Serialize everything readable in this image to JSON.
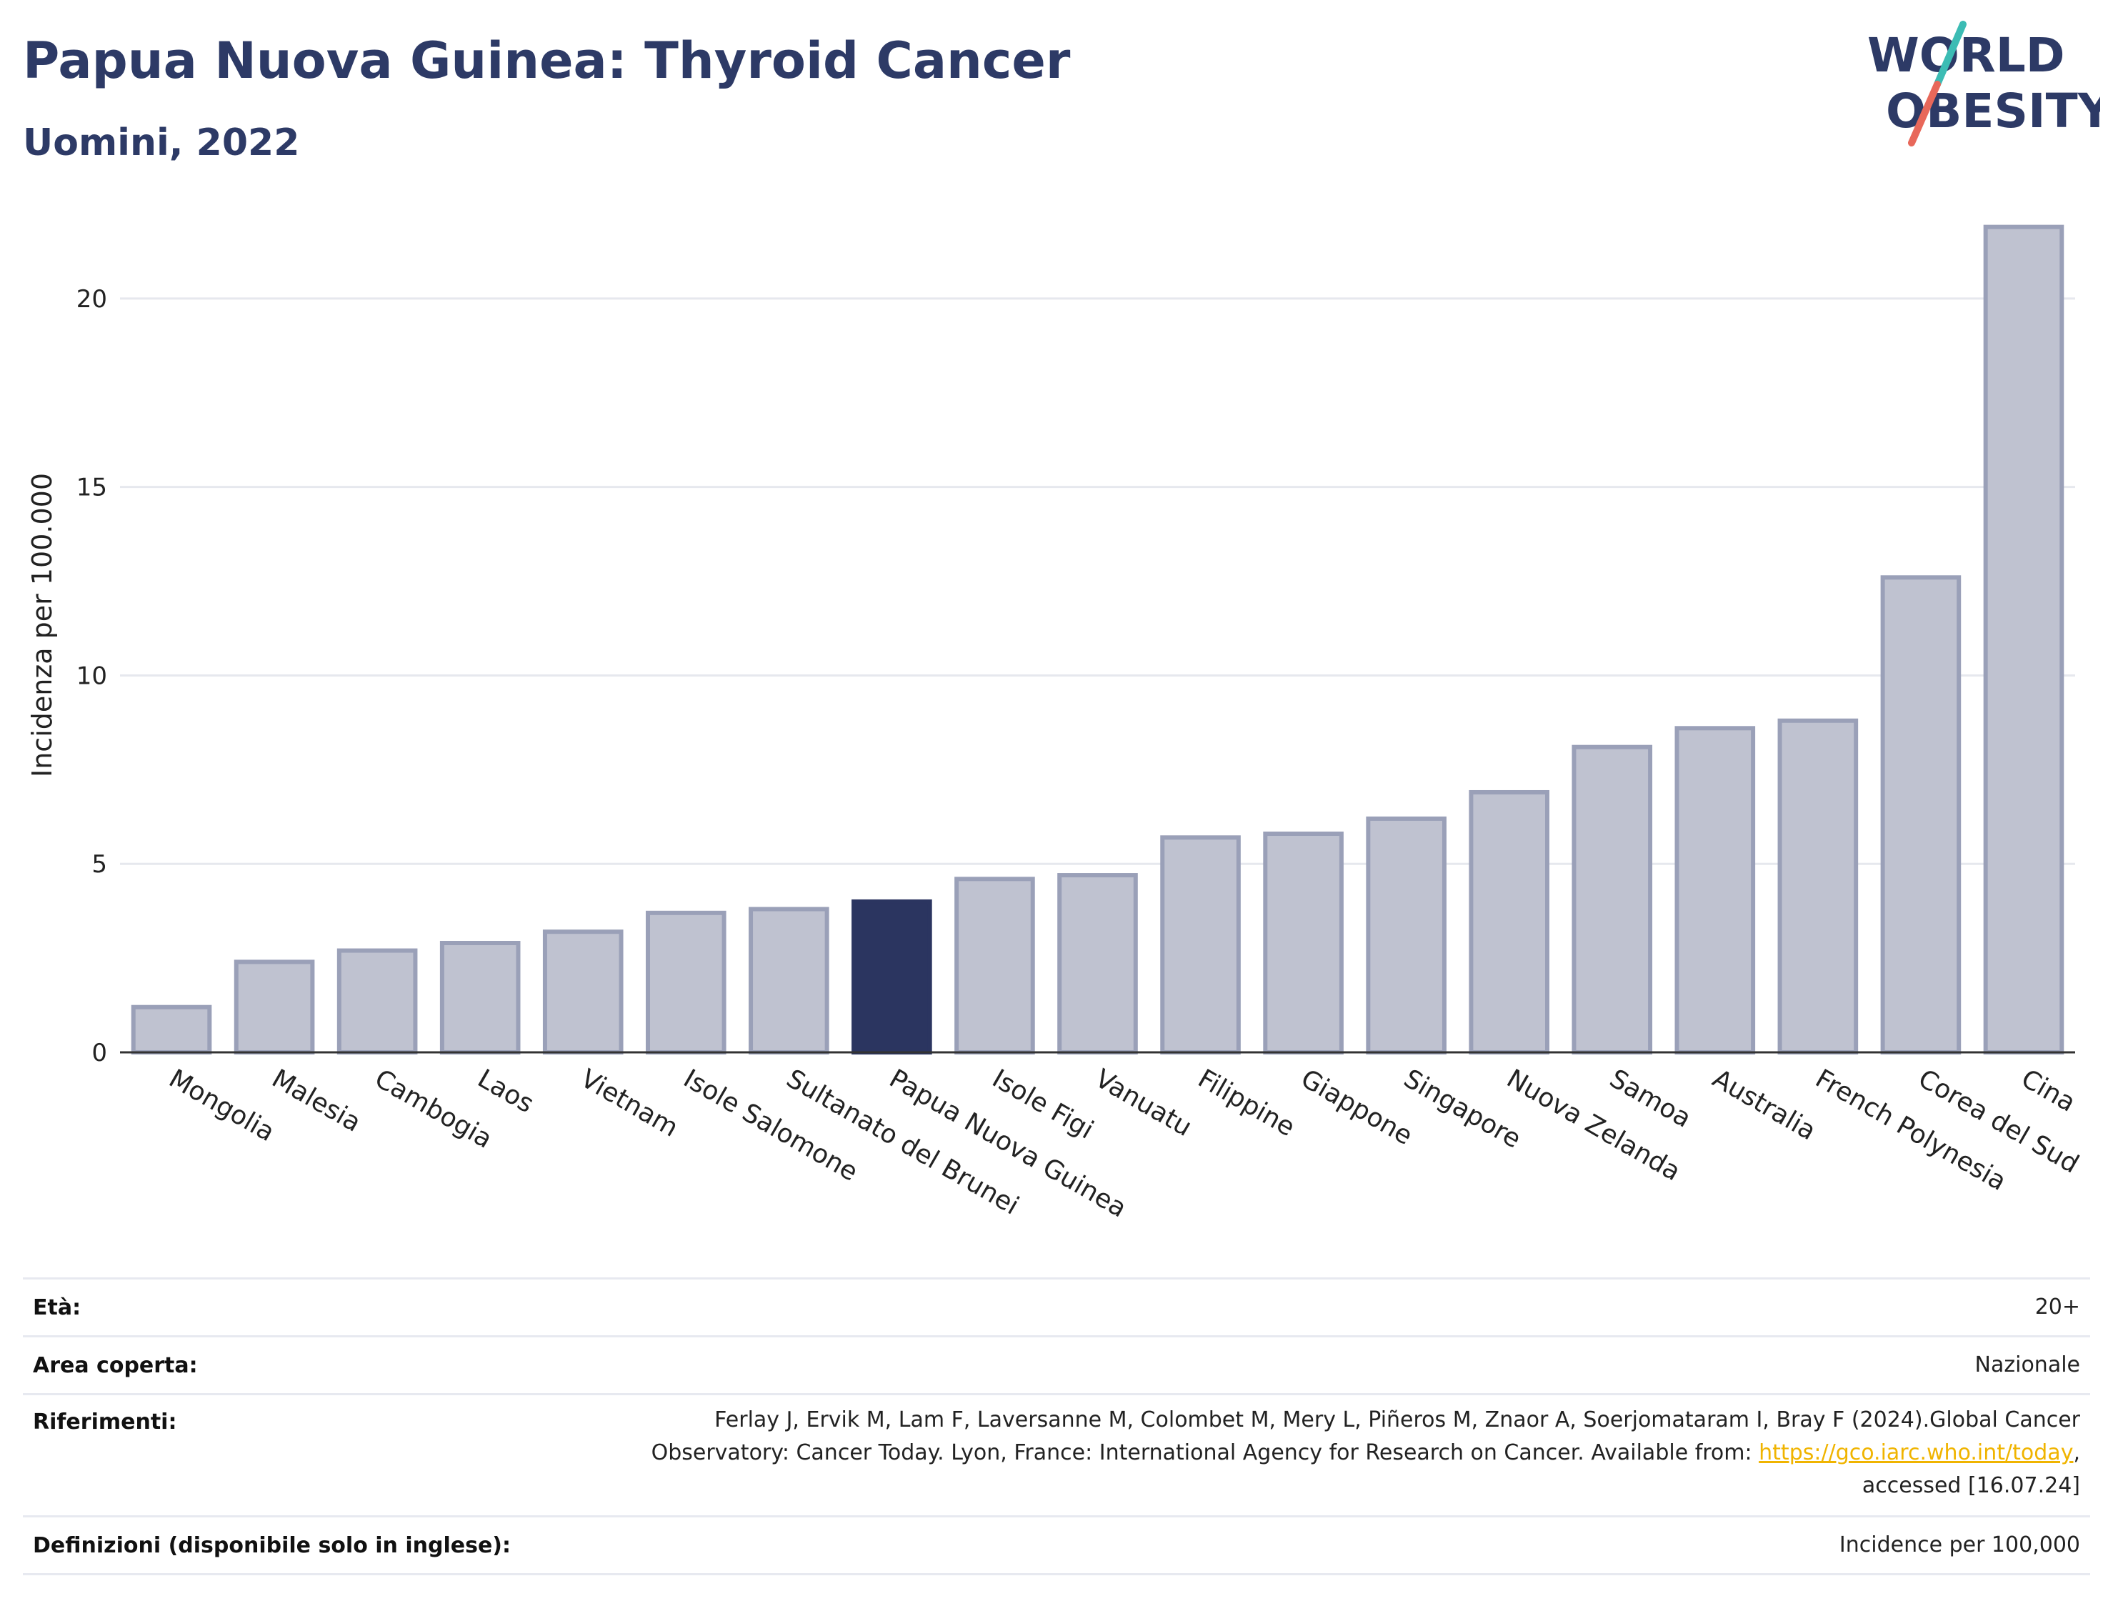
{
  "header": {
    "title": "Papua Nuova Guinea: Thyroid Cancer",
    "subtitle": "Uomini, 2022"
  },
  "logo": {
    "line1": "WORLD",
    "line2": "OBESITY"
  },
  "colors": {
    "bar": "#bfc2d0",
    "bar_border": "#9aa0b8",
    "highlight": "#2b3560",
    "title": "#2d3a66",
    "logo_teal": "#3cbcb4",
    "logo_coral": "#e8685a"
  },
  "chart_data": {
    "type": "bar",
    "ylabel": "Incidenza per 100.000",
    "ylim": [
      0,
      22.5
    ],
    "yticks": [
      0,
      5,
      10,
      15,
      20
    ],
    "grid": true,
    "highlight": "Papua Nuova Guinea",
    "categories": [
      "Mongolia",
      "Malesia",
      "Cambogia",
      "Laos",
      "Vietnam",
      "Isole Salomone",
      "Sultanato del Brunei",
      "Papua Nuova Guinea",
      "Isole Figi",
      "Vanuatu",
      "Filippine",
      "Giappone",
      "Singapore",
      "Nuova Zelanda",
      "Samoa",
      "Australia",
      "French Polynesia",
      "Corea del Sud",
      "Cina"
    ],
    "values": [
      1.2,
      2.4,
      2.7,
      2.9,
      3.2,
      3.7,
      3.8,
      4.0,
      4.6,
      4.7,
      5.7,
      5.8,
      6.2,
      6.9,
      8.1,
      8.6,
      8.8,
      12.6,
      21.9
    ]
  },
  "info": {
    "age_label": "Età:",
    "age_value": "20+",
    "area_label": "Area coperta:",
    "area_value": "Nazionale",
    "ref_label": "Riferimenti:",
    "ref_line1": "Ferlay J, Ervik M, Lam F, Laversanne M, Colombet M, Mery L, Piñeros M, Znaor A, Soerjomataram I, Bray F (2024).Global Cancer",
    "ref_line2": "Observatory: Cancer Today. Lyon, France: International Agency for Research on Cancer. Available from: ",
    "ref_link": "https://gco.iarc.who.int/today",
    "ref_line2_end": ",",
    "ref_line3": "accessed [16.07.24]",
    "def_label": "Definizioni (disponibile solo in inglese):",
    "def_value": "Incidence per 100,000"
  }
}
